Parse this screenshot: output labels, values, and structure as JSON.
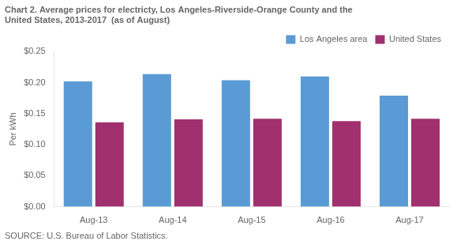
{
  "chart_data": {
    "type": "bar",
    "title": [
      "Chart 2. Average prices for electricty, Los Angeles-Riverside-Orange County and the",
      "United States, 2013-2017  (as of August)"
    ],
    "ylabel": "Per kWh",
    "source": "SOURCE: U.S. Bureau of Labor Statistics.",
    "categories": [
      "Aug-13",
      "Aug-14",
      "Aug-15",
      "Aug-16",
      "Aug-17"
    ],
    "series": [
      {
        "name": "Los Angeles area",
        "color": "#5B9BD5",
        "values": [
          0.202,
          0.214,
          0.204,
          0.21,
          0.179
        ]
      },
      {
        "name": "United States",
        "color": "#A0306E",
        "values": [
          0.136,
          0.141,
          0.142,
          0.138,
          0.142
        ]
      }
    ],
    "ylim": [
      0,
      0.25
    ],
    "yticks": [
      {
        "value": 0.0,
        "label": "$0.00"
      },
      {
        "value": 0.05,
        "label": "$0.05"
      },
      {
        "value": 0.1,
        "label": "$0.10"
      },
      {
        "value": 0.15,
        "label": "$0.15"
      },
      {
        "value": 0.2,
        "label": "$0.20"
      },
      {
        "value": 0.25,
        "label": "$0.25"
      }
    ],
    "legend": "upper right",
    "grid": false
  }
}
